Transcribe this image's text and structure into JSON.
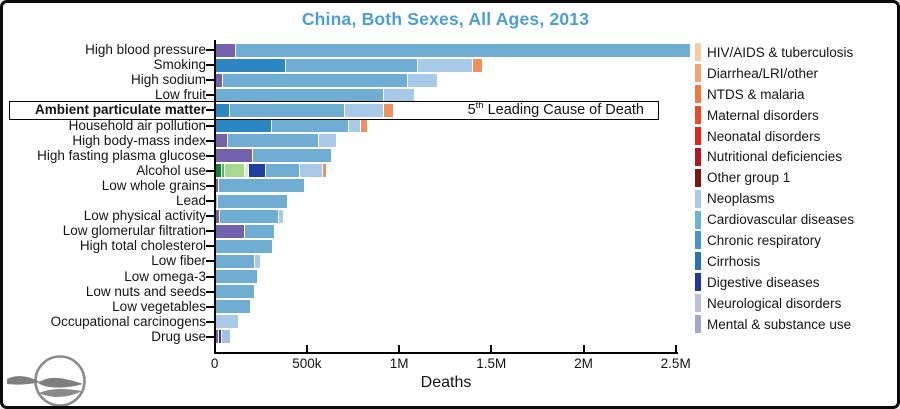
{
  "title": "China, Both Sexes, All Ages, 2013",
  "title_color": "#4c9fd2",
  "annotation": {
    "number": "5",
    "sup": "th",
    "text": " Leading Cause of Death"
  },
  "xaxis": {
    "label": "Deaths",
    "ticks": [
      {
        "label": "0",
        "value": 0
      },
      {
        "label": "500k",
        "value": 500000
      },
      {
        "label": "1M",
        "value": 1000000
      },
      {
        "label": "1.5M",
        "value": 1500000
      },
      {
        "label": "2M",
        "value": 2000000
      },
      {
        "label": "2.5M",
        "value": 2500000
      }
    ],
    "max": 2500000
  },
  "segment_colors": {
    "resp": "#2b86c1",
    "cardio": "#6fadd3",
    "neoplasms": "#a9c9e8",
    "lri": "#f0905c",
    "purple": "#7262ab",
    "navy": "#20409f",
    "dgreen": "#1b7d38",
    "mgreen": "#55b264",
    "lgreen": "#a6da90",
    "pgreen": "#ddefd8",
    "lavender": "#b7badd",
    "periwinkle": "#a9c1e4"
  },
  "legend": {
    "items": [
      {
        "label": "HIV/AIDS & tuberculosis",
        "color": "#f8cba6"
      },
      {
        "label": "Diarrhea/LRI/other",
        "color": "#f0a579"
      },
      {
        "label": "NTDS & malaria",
        "color": "#f4793f"
      },
      {
        "label": "Maternal disorders",
        "color": "#e84c2b"
      },
      {
        "label": "Neonatal disorders",
        "color": "#e02621"
      },
      {
        "label": "Nutritional deficiencies",
        "color": "#ae1c20"
      },
      {
        "label": "Other group 1",
        "color": "#7c1416"
      },
      {
        "label": "Neoplasms",
        "color": "#a9cbe8"
      },
      {
        "label": "Cardiovascular diseases",
        "color": "#6fb0d6"
      },
      {
        "label": "Chronic respiratory",
        "color": "#4795c8"
      },
      {
        "label": "Cirrhosis",
        "color": "#2672b4"
      },
      {
        "label": "Digestive diseases",
        "color": "#20389d"
      },
      {
        "label": "Neurological disorders",
        "color": "#bcc0de"
      },
      {
        "label": "Mental & substance use",
        "color": "#a3a6cf"
      }
    ]
  },
  "icons": {
    "logo": "globe-waves-logo"
  },
  "chart_data": {
    "type": "bar",
    "stacked": true,
    "orientation": "horizontal",
    "title": "China, Both Sexes, All Ages, 2013",
    "xlabel": "Deaths",
    "xlim": [
      0,
      2500000
    ],
    "grid": false,
    "legend_position": "right",
    "rows": [
      {
        "label": "High blood pressure",
        "highlight": false,
        "segments": [
          {
            "category": "purple",
            "value": 108000
          },
          {
            "category": "cardio",
            "value": 2460000
          }
        ]
      },
      {
        "label": "Smoking",
        "highlight": false,
        "segments": [
          {
            "category": "resp",
            "value": 380000
          },
          {
            "category": "cardio",
            "value": 716000
          },
          {
            "category": "neoplasms",
            "value": 298000
          },
          {
            "category": "lri",
            "value": 49000
          }
        ]
      },
      {
        "label": "High sodium",
        "highlight": false,
        "segments": [
          {
            "category": "purple",
            "value": 38000
          },
          {
            "category": "cardio",
            "value": 1003000
          },
          {
            "category": "neoplasms",
            "value": 157000
          }
        ]
      },
      {
        "label": "Low fruit",
        "highlight": false,
        "segments": [
          {
            "category": "cardio",
            "value": 913000
          },
          {
            "category": "neoplasms",
            "value": 163000
          }
        ]
      },
      {
        "label": "Ambient particulate matter",
        "highlight": true,
        "segments": [
          {
            "category": "resp",
            "value": 74000
          },
          {
            "category": "cardio",
            "value": 624000
          },
          {
            "category": "neoplasms",
            "value": 213000
          },
          {
            "category": "lri",
            "value": 49000
          }
        ]
      },
      {
        "label": "Household air pollution",
        "highlight": false,
        "segments": [
          {
            "category": "resp",
            "value": 304000
          },
          {
            "category": "cardio",
            "value": 416000
          },
          {
            "category": "neoplasms",
            "value": 65000
          },
          {
            "category": "lri",
            "value": 33000
          }
        ]
      },
      {
        "label": "High body-mass index",
        "highlight": false,
        "segments": [
          {
            "category": "purple",
            "value": 67000
          },
          {
            "category": "cardio",
            "value": 494000
          },
          {
            "category": "neoplasms",
            "value": 90000
          }
        ]
      },
      {
        "label": "High fasting plasma glucose",
        "highlight": false,
        "segments": [
          {
            "category": "purple",
            "value": 203000
          },
          {
            "category": "cardio",
            "value": 421000
          }
        ]
      },
      {
        "label": "Alcohol use",
        "highlight": false,
        "segments": [
          {
            "category": "dgreen",
            "value": 30000
          },
          {
            "category": "mgreen",
            "value": 19000
          },
          {
            "category": "lgreen",
            "value": 106000
          },
          {
            "category": "pgreen",
            "value": 22000
          },
          {
            "category": "navy",
            "value": 95000
          },
          {
            "category": "cardio",
            "value": 182000
          },
          {
            "category": "neoplasms",
            "value": 127000
          },
          {
            "category": "lri",
            "value": 16000
          }
        ]
      },
      {
        "label": "Low whole grains",
        "highlight": false,
        "segments": [
          {
            "category": "purple",
            "value": 16000
          },
          {
            "category": "cardio",
            "value": 461000
          }
        ]
      },
      {
        "label": "Lead",
        "highlight": false,
        "segments": [
          {
            "category": "lavender",
            "value": 9000
          },
          {
            "category": "cardio",
            "value": 372000
          }
        ]
      },
      {
        "label": "Low physical activity",
        "highlight": false,
        "segments": [
          {
            "category": "purple",
            "value": 20000
          },
          {
            "category": "cardio",
            "value": 322000
          },
          {
            "category": "neoplasms",
            "value": 20000
          }
        ]
      },
      {
        "label": "Low glomerular filtration",
        "highlight": false,
        "segments": [
          {
            "category": "purple",
            "value": 157000
          },
          {
            "category": "cardio",
            "value": 157000
          }
        ]
      },
      {
        "label": "High total cholesterol",
        "highlight": false,
        "segments": [
          {
            "category": "cardio",
            "value": 306000
          }
        ]
      },
      {
        "label": "Low fiber",
        "highlight": false,
        "segments": [
          {
            "category": "cardio",
            "value": 212000
          },
          {
            "category": "neoplasms",
            "value": 26000
          }
        ]
      },
      {
        "label": "Low omega-3",
        "highlight": false,
        "segments": [
          {
            "category": "cardio",
            "value": 221000
          }
        ]
      },
      {
        "label": "Low nuts and seeds",
        "highlight": false,
        "segments": [
          {
            "category": "cardio",
            "value": 208000
          }
        ]
      },
      {
        "label": "Low vegetables",
        "highlight": false,
        "segments": [
          {
            "category": "cardio",
            "value": 185000
          }
        ]
      },
      {
        "label": "Occupational carcinogens",
        "highlight": false,
        "segments": [
          {
            "category": "neoplasms",
            "value": 121000
          }
        ]
      },
      {
        "label": "Drug use",
        "highlight": false,
        "segments": [
          {
            "category": "purple",
            "value": 18000
          },
          {
            "category": "navy",
            "value": 14000
          },
          {
            "category": "periwinkle",
            "value": 42000
          }
        ]
      }
    ]
  }
}
